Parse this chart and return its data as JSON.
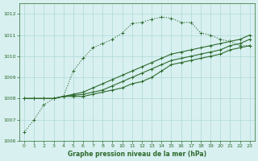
{
  "x": [
    0,
    1,
    2,
    3,
    4,
    5,
    6,
    7,
    8,
    9,
    10,
    11,
    12,
    13,
    14,
    15,
    16,
    17,
    18,
    19,
    20,
    21,
    22,
    23
  ],
  "series_dotted": [
    1006.4,
    1007.0,
    1007.7,
    1008.0,
    1008.1,
    1009.3,
    1009.9,
    1010.4,
    1010.6,
    1010.8,
    1011.1,
    1011.55,
    1011.6,
    1011.75,
    1011.85,
    1011.8,
    1011.6,
    1011.6,
    1011.1,
    1011.0,
    1010.8,
    1010.7,
    1010.5,
    1010.5
  ],
  "series_top": [
    1008.0,
    1008.0,
    1008.0,
    1008.0,
    1008.1,
    1008.1,
    1008.1,
    1008.2,
    1008.3,
    1008.4,
    1008.5,
    1008.7,
    1008.8,
    1009.0,
    1009.3,
    1009.6,
    1009.7,
    1009.8,
    1009.9,
    1010.0,
    1010.1,
    1010.3,
    1010.4,
    1010.5
  ],
  "series_mid": [
    1008.0,
    1008.0,
    1008.0,
    1008.0,
    1008.1,
    1008.15,
    1008.2,
    1008.3,
    1008.4,
    1008.6,
    1008.8,
    1009.0,
    1009.2,
    1009.4,
    1009.6,
    1009.8,
    1009.9,
    1010.0,
    1010.1,
    1010.2,
    1010.3,
    1010.5,
    1010.6,
    1010.8
  ],
  "series_bot": [
    1008.0,
    1008.0,
    1008.0,
    1008.0,
    1008.1,
    1008.2,
    1008.3,
    1008.5,
    1008.7,
    1008.9,
    1009.1,
    1009.3,
    1009.5,
    1009.7,
    1009.9,
    1010.1,
    1010.2,
    1010.3,
    1010.4,
    1010.5,
    1010.6,
    1010.7,
    1010.8,
    1011.0
  ],
  "ylim_min": 1006.0,
  "ylim_max": 1012.5,
  "yticks": [
    1006,
    1007,
    1008,
    1009,
    1010,
    1011,
    1012
  ],
  "xlim_min": -0.5,
  "xlim_max": 23.5,
  "xticks": [
    0,
    1,
    2,
    3,
    4,
    5,
    6,
    7,
    8,
    9,
    10,
    11,
    12,
    13,
    14,
    15,
    16,
    17,
    18,
    19,
    20,
    21,
    22,
    23
  ],
  "line_color": "#2d6a2d",
  "bg_color": "#d8f0f0",
  "grid_color": "#afd8d8",
  "xlabel": "Graphe pression niveau de la mer (hPa)",
  "marker": "+",
  "marker_size": 3,
  "line_width": 0.8
}
